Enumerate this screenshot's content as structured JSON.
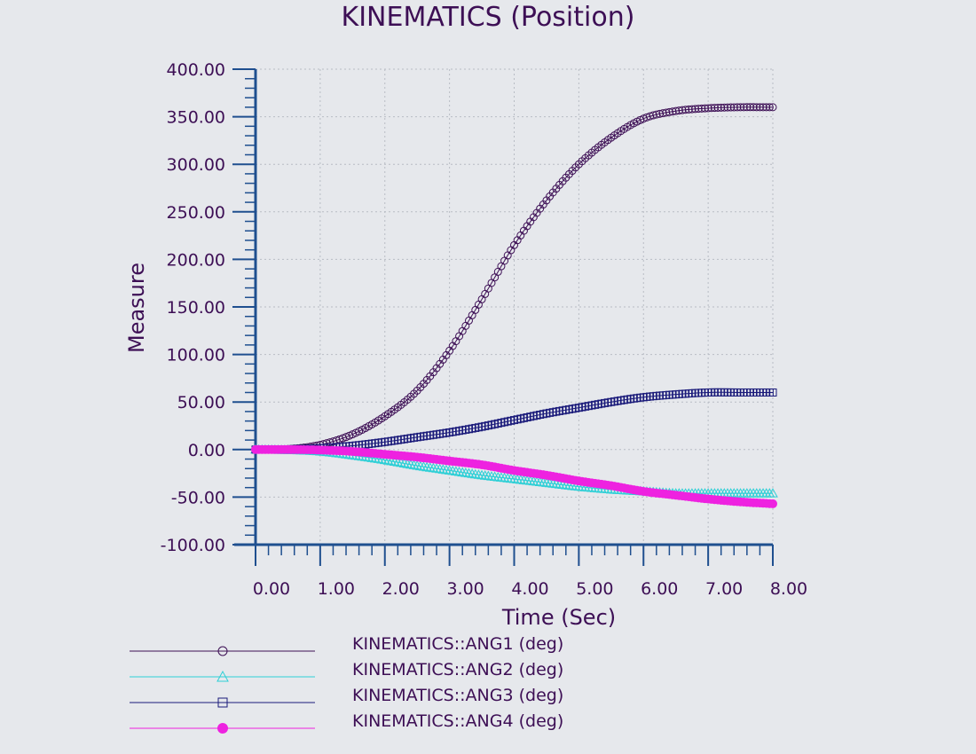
{
  "colors": {
    "background": "#e6e8ec",
    "text": "#3d0f55",
    "axis": "#1f4f8f",
    "grid": "#b8bcc4"
  },
  "chart_data": {
    "type": "line",
    "title": "KINEMATICS (Position)",
    "xlabel": "Time (Sec)",
    "ylabel": "Measure",
    "xlim": [
      0,
      8
    ],
    "ylim": [
      -100,
      400
    ],
    "xticks": [
      "0.00",
      "1.00",
      "2.00",
      "3.00",
      "4.00",
      "5.00",
      "6.00",
      "7.00",
      "8.00"
    ],
    "yticks": [
      "-100.00",
      "-50.00",
      "0.00",
      "50.00",
      "100.00",
      "150.00",
      "200.00",
      "250.00",
      "300.00",
      "350.00",
      "400.00"
    ],
    "grid": true,
    "legend_position": "bottom",
    "x": [
      0,
      0.5,
      1,
      1.5,
      2,
      2.5,
      3,
      3.5,
      4,
      4.5,
      5,
      5.5,
      6,
      6.5,
      7,
      7.5,
      8
    ],
    "series": [
      {
        "name": "KINEMATICS::ANG1 (deg)",
        "color": "#3d0f55",
        "marker": "circle",
        "values": [
          0,
          0.5,
          5,
          16,
          35,
          62,
          104,
          158,
          215,
          262,
          300,
          328,
          348,
          356,
          359,
          360,
          360
        ]
      },
      {
        "name": "KINEMATICS::ANG2 (deg)",
        "color": "#2ecfd6",
        "marker": "triangle",
        "values": [
          0,
          -0.5,
          -2,
          -6,
          -11,
          -17,
          -22,
          -27,
          -31,
          -35,
          -39,
          -42,
          -44,
          -46,
          -46,
          -46,
          -46
        ]
      },
      {
        "name": "KINEMATICS::ANG3 (deg)",
        "color": "#1a1a7a",
        "marker": "square",
        "values": [
          0,
          0.3,
          1.5,
          4,
          8,
          13,
          18,
          24,
          31,
          38,
          44,
          50,
          55,
          58,
          60,
          60,
          60
        ]
      },
      {
        "name": "KINEMATICS::ANG4 (deg)",
        "color": "#ee22e0",
        "marker": "filled-circle",
        "values": [
          0,
          0,
          -0.5,
          -2,
          -5,
          -8,
          -12,
          -16,
          -22,
          -27,
          -33,
          -38,
          -44,
          -48,
          -52,
          -55,
          -57
        ]
      }
    ]
  }
}
